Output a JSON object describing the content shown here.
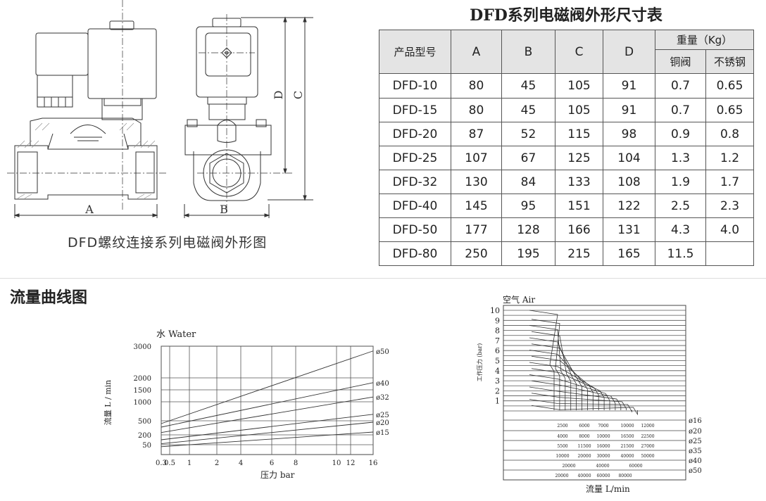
{
  "dimension_table": {
    "title": "DFD系列电磁阀外形尺寸表",
    "headers": {
      "model": "产品型号",
      "a": "A",
      "b": "B",
      "c": "C",
      "d": "D",
      "weight": "重量（Kg）",
      "copper": "铜阀",
      "stainless": "不锈钢"
    },
    "rows": [
      [
        "DFD-10",
        "80",
        "45",
        "105",
        "91",
        "0.7",
        "0.65"
      ],
      [
        "DFD-15",
        "80",
        "45",
        "105",
        "91",
        "0.7",
        "0.65"
      ],
      [
        "DFD-20",
        "87",
        "52",
        "115",
        "98",
        "0.9",
        "0.8"
      ],
      [
        "DFD-25",
        "107",
        "67",
        "125",
        "104",
        "1.3",
        "1.2"
      ],
      [
        "DFD-32",
        "130",
        "84",
        "133",
        "108",
        "1.9",
        "1.7"
      ],
      [
        "DFD-40",
        "145",
        "95",
        "151",
        "122",
        "2.5",
        "2.3"
      ],
      [
        "DFD-50",
        "177",
        "128",
        "166",
        "131",
        "4.3",
        "4.0"
      ],
      [
        "DFD-80",
        "250",
        "195",
        "215",
        "165",
        "11.5",
        ""
      ]
    ]
  },
  "drawing": {
    "caption": "DFD螺纹连接系列电磁阀外形图",
    "labels": {
      "a": "A",
      "b": "B",
      "c": "C",
      "d": "D"
    }
  },
  "flow_section_title": "流量曲线图",
  "chart_data": [
    {
      "type": "line",
      "title": "水 Water",
      "xlabel": "压力 bar",
      "ylabel": "流量 L / min",
      "x_ticks": [
        "0.3",
        "0.5",
        "1",
        "2",
        "4",
        "6",
        "8",
        "10",
        "12",
        "16"
      ],
      "y_ticks": [
        "3000",
        "2000",
        "1500",
        "1000",
        "500",
        "200",
        "50"
      ],
      "xlim": [
        0.3,
        16
      ],
      "ylim": [
        0,
        3000
      ],
      "grid": true,
      "series": [
        {
          "name": "ø50",
          "x": [
            0.3,
            16
          ],
          "y": [
            440,
            2850
          ]
        },
        {
          "name": "ø40",
          "x": [
            0.3,
            16
          ],
          "y": [
            365,
            1800
          ]
        },
        {
          "name": "ø32",
          "x": [
            0.3,
            16
          ],
          "y": [
            250,
            1200
          ]
        },
        {
          "name": "ø25",
          "x": [
            0.3,
            16
          ],
          "y": [
            125,
            670
          ]
        },
        {
          "name": "ø20",
          "x": [
            0.3,
            16
          ],
          "y": [
            65,
            470
          ]
        },
        {
          "name": "ø15",
          "x": [
            0.3,
            16
          ],
          "y": [
            40,
            260
          ]
        }
      ]
    },
    {
      "type": "line",
      "title": "空气 Air",
      "ylabel": "工作压力 (bar)",
      "xlabel": "流量 L/min",
      "y_ticks": [
        "10",
        "9",
        "8",
        "7",
        "6",
        "5",
        "4",
        "3",
        "2",
        "1"
      ],
      "ylim": [
        0,
        10
      ],
      "grid": true,
      "flow_table": [
        {
          "name": "ø16",
          "values": [
            "2500",
            "6000",
            "7000",
            "10000",
            "12000"
          ]
        },
        {
          "name": "ø20",
          "values": [
            "4000",
            "8000",
            "10000",
            "16500",
            "22500"
          ]
        },
        {
          "name": "ø25",
          "values": [
            "5500",
            "11500",
            "16000",
            "21500",
            "27000"
          ]
        },
        {
          "name": "ø35",
          "values": [
            "10000",
            "20000",
            "30000",
            "40000",
            "50000"
          ]
        },
        {
          "name": "ø40",
          "values": [
            "20000",
            "40000",
            "60000"
          ]
        },
        {
          "name": "ø50",
          "values": [
            "20000",
            "40000",
            "60000",
            "80000"
          ]
        }
      ]
    }
  ]
}
